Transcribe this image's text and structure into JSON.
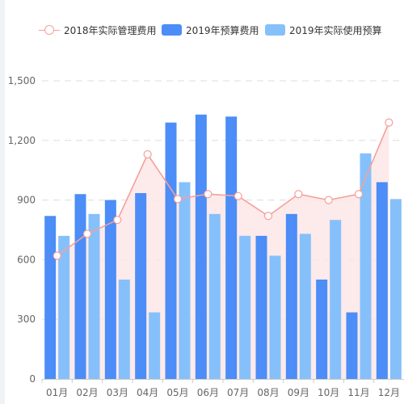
{
  "colors": {
    "line": "#f5a09a",
    "area": "#fde6e6",
    "bar1": "#4c8df7",
    "bar2": "#86c0fb",
    "grid": "#dddddd",
    "axis_text": "#666666"
  },
  "chart_data": {
    "type": "bar",
    "categories": [
      "01月",
      "02月",
      "03月",
      "04月",
      "05月",
      "06月",
      "07月",
      "08月",
      "09月",
      "10月",
      "11月",
      "12月"
    ],
    "series": [
      {
        "name": "2018年实际管理费用",
        "type": "line",
        "values": [
          620,
          730,
          800,
          1130,
          905,
          930,
          920,
          820,
          930,
          900,
          930,
          1290
        ]
      },
      {
        "name": "2019年预算费用",
        "type": "bar",
        "values": [
          820,
          930,
          900,
          935,
          1290,
          1330,
          1320,
          720,
          830,
          500,
          335,
          990
        ]
      },
      {
        "name": "2019年实际使用预算",
        "type": "bar",
        "values": [
          720,
          830,
          500,
          335,
          990,
          830,
          720,
          620,
          730,
          800,
          1135,
          905
        ]
      }
    ],
    "ylim": [
      0,
      1500
    ],
    "yticks": [
      "0",
      "300",
      "600",
      "900",
      "1,200",
      "1,500"
    ],
    "grid": true,
    "legend_position": "top"
  }
}
